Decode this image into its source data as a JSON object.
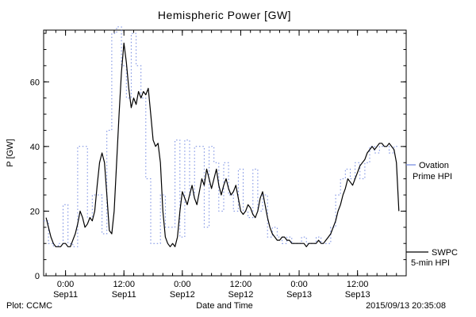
{
  "footer": {
    "left": "Plot: CCMC",
    "right": "2015/09/13 20:35:08"
  },
  "colors": {
    "ovation": "#6f86e0",
    "swpc": "#000000",
    "axis": "#000000",
    "background": "#ffffff"
  },
  "legend": {
    "ovation": {
      "line1": "Ovation",
      "line2": "Prime HPI"
    },
    "swpc": {
      "line1": "SWPC",
      "line2": "5-min HPI"
    }
  },
  "chart_data": {
    "type": "line",
    "title": "Hemispheric Power [GW]",
    "xlabel": "Date and Time",
    "ylabel": "P [GW]",
    "ylim": [
      0,
      76
    ],
    "xlim": [
      -4.5,
      70
    ],
    "x_unit": "hours since Sep11 00:00",
    "grid": false,
    "legend_position": "right-outside",
    "yticks": [
      0,
      20,
      40,
      60
    ],
    "y_minor_step": 5,
    "x_minor_step": 2,
    "xticks": [
      {
        "t": 0,
        "time": "0:00",
        "date": "Sep11"
      },
      {
        "t": 12,
        "time": "12:00",
        "date": "Sep11"
      },
      {
        "t": 24,
        "time": "0:00",
        "date": "Sep12"
      },
      {
        "t": 36,
        "time": "12:00",
        "date": "Sep12"
      },
      {
        "t": 48,
        "time": "0:00",
        "date": "Sep13"
      },
      {
        "t": 60,
        "time": "12:00",
        "date": "Sep13"
      }
    ],
    "series": [
      {
        "name": "Ovation Prime HPI",
        "style": "dotted-step",
        "color_key": "ovation",
        "t0": -4.5,
        "dt": 1,
        "y": [
          17,
          10,
          9,
          10,
          22,
          10,
          9,
          40,
          40,
          18,
          25,
          25,
          13,
          45,
          75,
          77,
          65,
          55,
          75,
          65,
          55,
          30,
          10,
          10,
          25,
          15,
          15,
          42,
          12,
          42,
          25,
          40,
          40,
          15,
          40,
          35,
          20,
          35,
          25,
          20,
          33,
          20,
          18,
          33,
          20,
          25,
          12,
          15,
          12,
          10,
          12,
          10,
          10,
          12,
          10,
          10,
          12,
          10,
          10,
          15,
          25,
          30,
          33,
          30,
          35,
          30,
          35,
          40,
          38,
          40,
          40,
          38,
          40
        ]
      },
      {
        "name": "SWPC 5-min HPI",
        "style": "solid",
        "color_key": "swpc",
        "t0": -4,
        "dt": 0.5,
        "y": [
          18,
          15,
          12,
          10,
          9,
          9,
          9,
          10,
          10,
          9,
          9,
          11,
          13,
          16,
          20,
          18,
          15,
          16,
          18,
          17,
          20,
          28,
          35,
          38,
          35,
          25,
          14,
          13,
          20,
          35,
          50,
          63,
          72,
          66,
          58,
          52,
          55,
          53,
          57,
          55,
          57,
          56,
          58,
          50,
          42,
          40,
          41,
          35,
          20,
          12,
          10,
          9,
          10,
          9,
          12,
          20,
          26,
          24,
          22,
          25,
          28,
          24,
          22,
          26,
          30,
          28,
          33,
          30,
          27,
          30,
          33,
          28,
          25,
          28,
          30,
          27,
          25,
          26,
          28,
          24,
          20,
          19,
          20,
          22,
          21,
          19,
          18,
          20,
          24,
          26,
          22,
          18,
          15,
          13,
          12,
          11,
          11,
          12,
          12,
          11,
          11,
          10,
          10,
          10,
          10,
          10,
          10,
          9,
          10,
          10,
          10,
          10,
          11,
          10,
          10,
          11,
          12,
          13,
          15,
          17,
          20,
          22,
          25,
          27,
          30,
          29,
          28,
          30,
          32,
          34,
          35,
          36,
          38,
          39,
          40,
          39,
          40,
          41,
          41,
          40,
          40,
          41,
          40,
          39,
          35,
          20
        ]
      }
    ]
  }
}
